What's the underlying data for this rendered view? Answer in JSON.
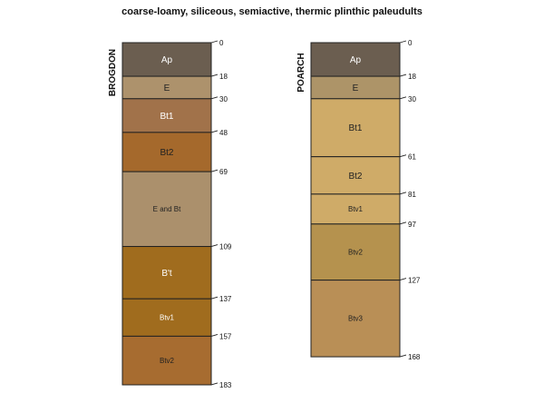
{
  "title": "coarse-loamy, siliceous, semiactive, thermic plinthic paleudults",
  "depth_scale": {
    "max": 183
  },
  "profiles": [
    {
      "name": "BROGDON",
      "horizons": [
        {
          "label": "Ap",
          "top": 0,
          "bottom": 18,
          "color": "#6b5e50",
          "label_color": "#ffffff",
          "size": "large"
        },
        {
          "label": "E",
          "top": 18,
          "bottom": 30,
          "color": "#ad926c",
          "label_color": "#222222",
          "size": "large"
        },
        {
          "label": "Bt1",
          "top": 30,
          "bottom": 48,
          "color": "#a1724a",
          "label_color": "#ffffff",
          "size": "large"
        },
        {
          "label": "Bt2",
          "top": 48,
          "bottom": 69,
          "color": "#a5692c",
          "label_color": "#222222",
          "size": "large"
        },
        {
          "label": "E and Bt",
          "top": 69,
          "bottom": 109,
          "color": "#ab906c",
          "label_color": "#222222",
          "size": "small"
        },
        {
          "label": "B't",
          "top": 109,
          "bottom": 137,
          "color": "#a06c1e",
          "label_color": "#ffffff",
          "size": "large"
        },
        {
          "label": "Btv1",
          "top": 137,
          "bottom": 157,
          "color": "#a06c1e",
          "label_color": "#ffffff",
          "size": "small"
        },
        {
          "label": "Btv2",
          "top": 157,
          "bottom": 183,
          "color": "#a76c30",
          "label_color": "#222222",
          "size": "small"
        }
      ],
      "depth_labels": [
        "0",
        "18",
        "30",
        "48",
        "69",
        "109",
        "137",
        "157",
        "183"
      ]
    },
    {
      "name": "POARCH",
      "horizons": [
        {
          "label": "Ap",
          "top": 0,
          "bottom": 18,
          "color": "#6b5e50",
          "label_color": "#ffffff",
          "size": "large"
        },
        {
          "label": "E",
          "top": 18,
          "bottom": 30,
          "color": "#ad9468",
          "label_color": "#222222",
          "size": "large"
        },
        {
          "label": "Bt1",
          "top": 30,
          "bottom": 61,
          "color": "#cfab68",
          "label_color": "#222222",
          "size": "large"
        },
        {
          "label": "Bt2",
          "top": 61,
          "bottom": 81,
          "color": "#cfab68",
          "label_color": "#222222",
          "size": "large"
        },
        {
          "label": "Btv1",
          "top": 81,
          "bottom": 97,
          "color": "#cfab68",
          "label_color": "#222222",
          "size": "small"
        },
        {
          "label": "Btv2",
          "top": 97,
          "bottom": 127,
          "color": "#b5924e",
          "label_color": "#222222",
          "size": "small"
        },
        {
          "label": "Btv3",
          "top": 127,
          "bottom": 168,
          "color": "#b98f56",
          "label_color": "#222222",
          "size": "small"
        }
      ],
      "depth_labels": [
        "0",
        "18",
        "30",
        "61",
        "81",
        "97",
        "127",
        "168"
      ]
    }
  ]
}
